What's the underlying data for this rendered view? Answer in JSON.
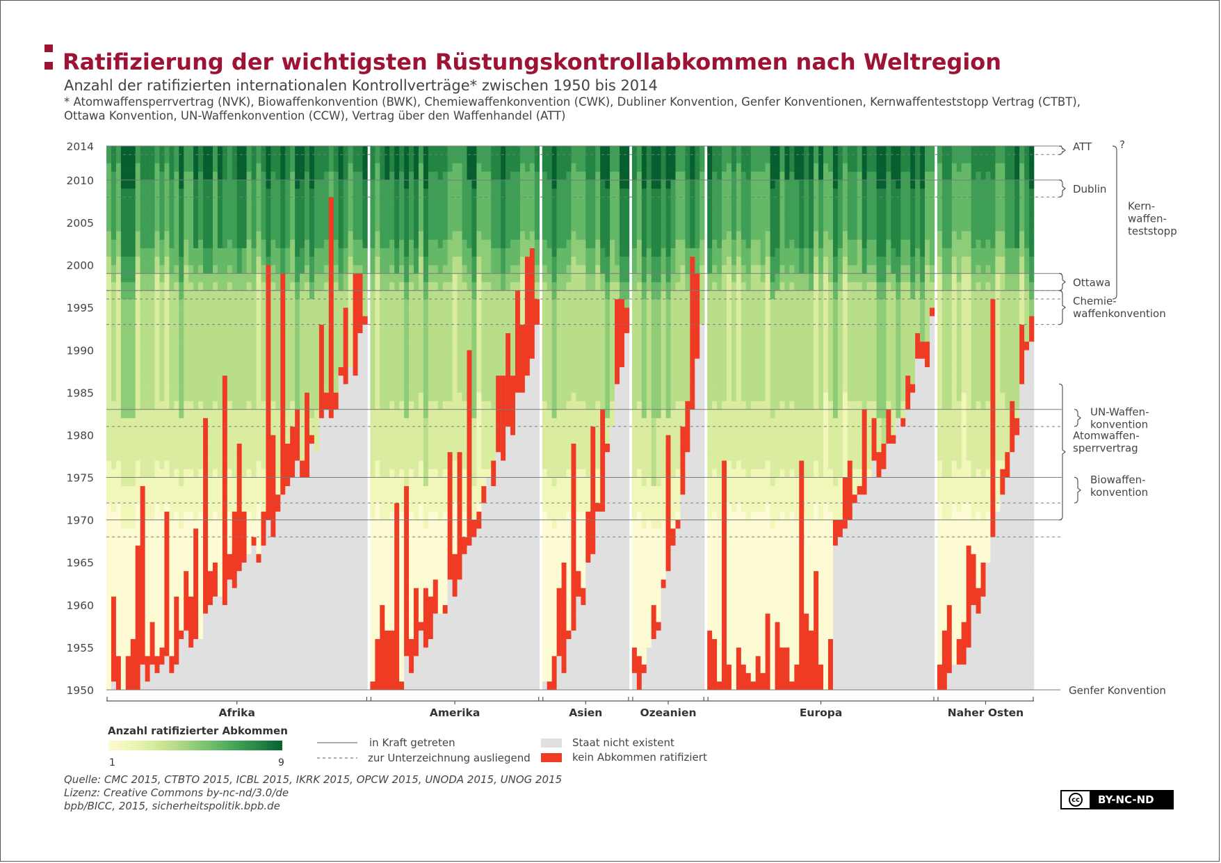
{
  "chart_data": {
    "type": "heatmap",
    "title": "Ratifizierung der wichtigsten Rüstungskontrollabkommen nach Weltregion",
    "subtitle": "Anzahl der ratifizierten internationalen Kontrollverträge* zwischen 1950 bis 2014",
    "footnote": [
      "* Atomwaffensperrvertrag (NVK), Biowaffenkonvention (BWK), Chemiewaffenkonvention (CWK), Dubliner Konvention, Genfer Konventionen, Kernwaffenteststopp Vertrag (CTBT),",
      "Ottawa Konvention, UN-Waffenkonvention (CCW), Vertrag über den Waffenhandel (ATT)"
    ],
    "y_axis": {
      "ticks": [
        2014,
        2010,
        2005,
        2000,
        1995,
        1990,
        1985,
        1980,
        1975,
        1970,
        1965,
        1960,
        1955,
        1950
      ],
      "range": [
        1950,
        2014
      ]
    },
    "regions": [
      {
        "name": "Afrika",
        "countries": 54
      },
      {
        "name": "Amerika",
        "countries": 35
      },
      {
        "name": "Asien",
        "countries": 18
      },
      {
        "name": "Ozeanien",
        "countries": 15
      },
      {
        "name": "Europa",
        "countries": 47
      },
      {
        "name": "Naher Osten",
        "countries": 20
      }
    ],
    "treaties": [
      {
        "name": "Genfer Konvention",
        "in_force": 1950,
        "signature_open": null
      },
      {
        "name": "Biowaffen- konvention",
        "in_force": 1975,
        "signature_open": 1972
      },
      {
        "name": "Atomwaffen- sperrvertrag",
        "in_force": 1970,
        "signature_open": 1968
      },
      {
        "name": "UN-Waffen- konvention",
        "in_force": 1983,
        "signature_open": 1981
      },
      {
        "name": "Chemie- waffenkonvention",
        "in_force": 1997,
        "signature_open": 1993
      },
      {
        "name": "Ottawa",
        "in_force": 1999,
        "signature_open": 1997
      },
      {
        "name": "Kern- waffen- teststopp",
        "in_force": null,
        "signature_open": 1996
      },
      {
        "name": "Dublin",
        "in_force": 2010,
        "signature_open": 2008
      },
      {
        "name": "ATT",
        "in_force": 2014,
        "signature_open": 2013
      }
    ],
    "color_scale": {
      "label": "Anzahl ratifizierter Abkommen",
      "min": 1,
      "max": 9,
      "colors": [
        "#fcfbd3",
        "#f1f6b9",
        "#d9ec9f",
        "#b8de8a",
        "#8fcc78",
        "#64b868",
        "#3e9e55",
        "#238443",
        "#075f2f"
      ],
      "no_treaty_color": "#ef3b24",
      "not_existent_color": "#e0e0e0"
    },
    "legend": {
      "line_solid": "in Kraft getreten",
      "line_dashed": "zur Unterzeichnung ausliegend",
      "gray_box": "Staat nicht existent",
      "red_box": "kein Abkommen ratifiziert"
    },
    "unknown_marker": "?",
    "source": [
      "Quelle: CMC 2015, CTBTO 2015, ICBL 2015, IKRK 2015, OPCW 2015, UNODA 2015, UNOG 2015",
      "Lizenz: Creative Commons by-nc-nd/3.0/de",
      "bpb/BICC, 2015, sicherheitspolitik.bpb.de"
    ],
    "license_badge": {
      "logo": "cc",
      "text": "BY-NC-ND"
    }
  }
}
